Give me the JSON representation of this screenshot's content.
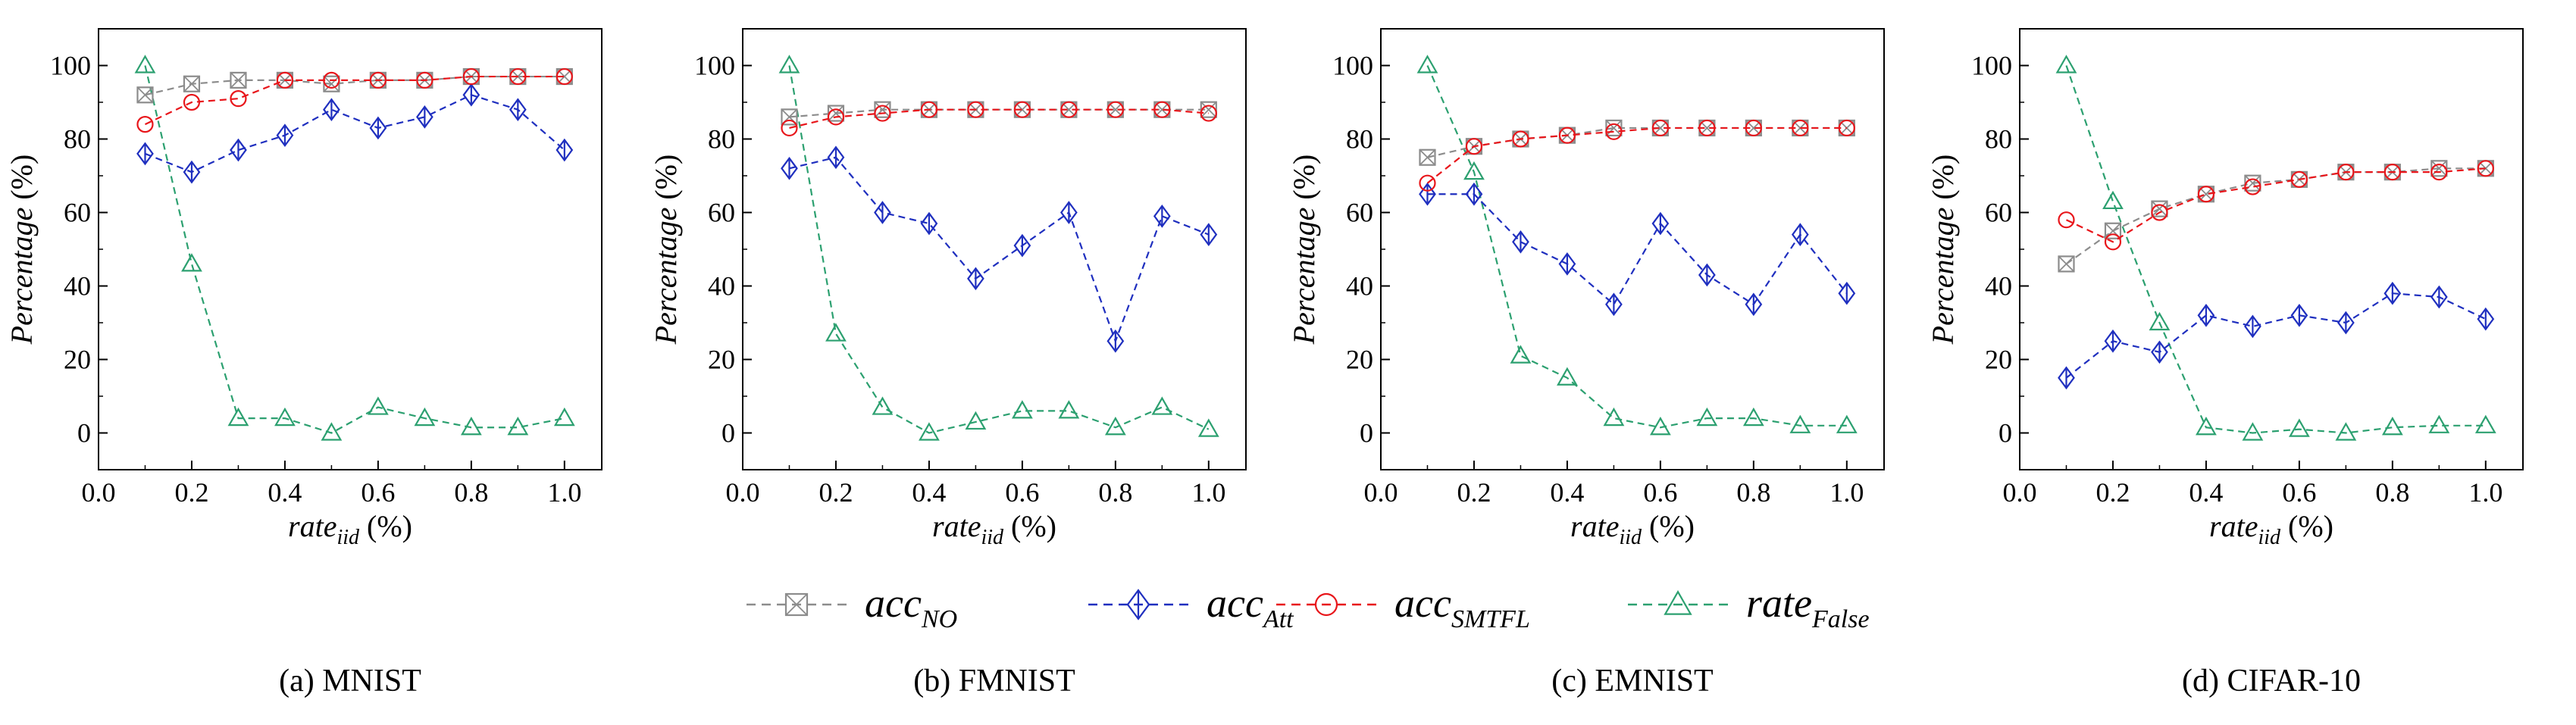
{
  "figure": {
    "legend_items": [
      {
        "key": "NO",
        "base": "acc",
        "sub": "NO",
        "color": "#8c8c8c",
        "marker": "box-x"
      },
      {
        "key": "Att",
        "base": "acc",
        "sub": "Att",
        "color": "#1f2fbf",
        "marker": "diamond"
      },
      {
        "key": "SMTFL",
        "base": "acc",
        "sub": "SMTFL",
        "color": "#e8161b",
        "marker": "circle"
      },
      {
        "key": "False",
        "base": "rate",
        "sub": "False",
        "color": "#2ca070",
        "marker": "triangle"
      }
    ]
  },
  "chart_data": [
    {
      "type": "line",
      "caption": "(a) MNIST",
      "ylabel": "Percentage (%)",
      "xlabel_base": "rate",
      "xlabel_sub": "iid",
      "xlabel_unit": " (%)",
      "xlim": [
        0.0,
        1.08
      ],
      "ylim": [
        -10,
        110
      ],
      "xticks": [
        "0.0",
        "0.2",
        "0.4",
        "0.6",
        "0.8",
        "1.0"
      ],
      "yticks": [
        "0",
        "20",
        "40",
        "60",
        "80",
        "100"
      ],
      "x": [
        0.1,
        0.2,
        0.3,
        0.4,
        0.5,
        0.6,
        0.7,
        0.8,
        0.9,
        1.0
      ],
      "series": [
        {
          "key": "NO",
          "values": [
            92,
            95,
            96,
            96,
            95,
            96,
            96,
            97,
            97,
            97
          ]
        },
        {
          "key": "Att",
          "values": [
            76,
            71,
            77,
            81,
            88,
            83,
            86,
            92,
            88,
            77
          ]
        },
        {
          "key": "SMTFL",
          "values": [
            84,
            90,
            91,
            96,
            96,
            96,
            96,
            97,
            97,
            97
          ]
        },
        {
          "key": "False",
          "values": [
            100,
            46,
            4,
            4,
            0,
            7,
            4,
            1.5,
            1.5,
            4
          ]
        }
      ]
    },
    {
      "type": "line",
      "caption": "(b) FMNIST",
      "ylabel": "Percentage (%)",
      "xlabel_base": "rate",
      "xlabel_sub": "iid",
      "xlabel_unit": " (%)",
      "xlim": [
        0.0,
        1.08
      ],
      "ylim": [
        -10,
        110
      ],
      "xticks": [
        "0.0",
        "0.2",
        "0.4",
        "0.6",
        "0.8",
        "1.0"
      ],
      "yticks": [
        "0",
        "20",
        "40",
        "60",
        "80",
        "100"
      ],
      "x": [
        0.1,
        0.2,
        0.3,
        0.4,
        0.5,
        0.6,
        0.7,
        0.8,
        0.9,
        1.0
      ],
      "series": [
        {
          "key": "NO",
          "values": [
            86,
            87,
            88,
            88,
            88,
            88,
            88,
            88,
            88,
            88
          ]
        },
        {
          "key": "Att",
          "values": [
            72,
            75,
            60,
            57,
            42,
            51,
            60,
            25,
            59,
            54
          ]
        },
        {
          "key": "SMTFL",
          "values": [
            83,
            86,
            87,
            88,
            88,
            88,
            88,
            88,
            88,
            87
          ]
        },
        {
          "key": "False",
          "values": [
            100,
            27,
            7,
            0,
            3,
            6,
            6,
            1.5,
            7,
            1
          ]
        }
      ]
    },
    {
      "type": "line",
      "caption": "(c) EMNIST",
      "ylabel": "Percentage (%)",
      "xlabel_base": "rate",
      "xlabel_sub": "iid",
      "xlabel_unit": " (%)",
      "xlim": [
        0.0,
        1.08
      ],
      "ylim": [
        -10,
        110
      ],
      "xticks": [
        "0.0",
        "0.2",
        "0.4",
        "0.6",
        "0.8",
        "1.0"
      ],
      "yticks": [
        "0",
        "20",
        "40",
        "60",
        "80",
        "100"
      ],
      "x": [
        0.1,
        0.2,
        0.3,
        0.4,
        0.5,
        0.6,
        0.7,
        0.8,
        0.9,
        1.0
      ],
      "series": [
        {
          "key": "NO",
          "values": [
            75,
            78,
            80,
            81,
            83,
            83,
            83,
            83,
            83,
            83
          ]
        },
        {
          "key": "Att",
          "values": [
            65,
            65,
            52,
            46,
            35,
            57,
            43,
            35,
            54,
            38
          ]
        },
        {
          "key": "SMTFL",
          "values": [
            68,
            78,
            80,
            81,
            82,
            83,
            83,
            83,
            83,
            83
          ]
        },
        {
          "key": "False",
          "values": [
            100,
            71,
            21,
            15,
            4,
            1.5,
            4,
            4,
            2,
            2
          ]
        }
      ]
    },
    {
      "type": "line",
      "caption": "(d) CIFAR-10",
      "ylabel": "Percentage (%)",
      "xlabel_base": "rate",
      "xlabel_sub": "iid",
      "xlabel_unit": " (%)",
      "xlim": [
        0.0,
        1.08
      ],
      "ylim": [
        -10,
        110
      ],
      "xticks": [
        "0.0",
        "0.2",
        "0.4",
        "0.6",
        "0.8",
        "1.0"
      ],
      "yticks": [
        "0",
        "20",
        "40",
        "60",
        "80",
        "100"
      ],
      "x": [
        0.1,
        0.2,
        0.3,
        0.4,
        0.5,
        0.6,
        0.7,
        0.8,
        0.9,
        1.0
      ],
      "series": [
        {
          "key": "NO",
          "values": [
            46,
            55,
            61,
            65,
            68,
            69,
            71,
            71,
            72,
            72
          ]
        },
        {
          "key": "Att",
          "values": [
            15,
            25,
            22,
            32,
            29,
            32,
            30,
            38,
            37,
            31
          ]
        },
        {
          "key": "SMTFL",
          "values": [
            58,
            52,
            60,
            65,
            67,
            69,
            71,
            71,
            71,
            72
          ]
        },
        {
          "key": "False",
          "values": [
            100,
            63,
            30,
            1.5,
            0,
            1,
            0,
            1.5,
            2,
            2
          ]
        }
      ]
    }
  ]
}
